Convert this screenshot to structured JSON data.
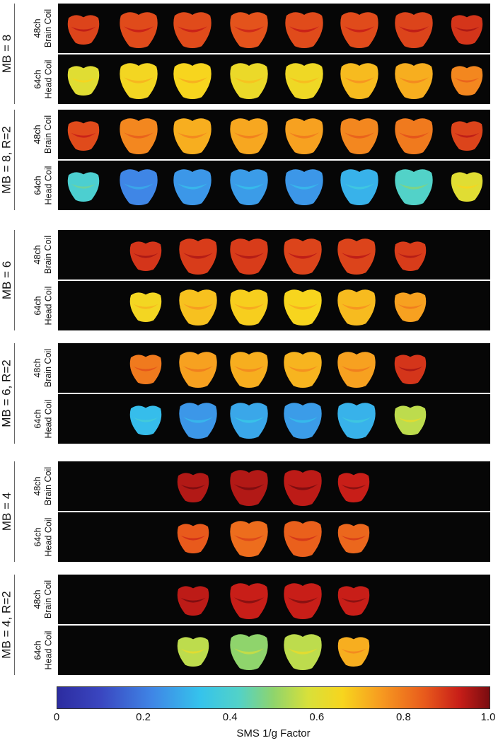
{
  "groups": [
    {
      "label": "MB = 8",
      "rows": [
        {
          "coil_count": "48ch",
          "coil_name": "Brain Coil",
          "g_values": [
            0.88,
            0.87,
            0.87,
            0.86,
            0.87,
            0.87,
            0.88,
            0.9
          ]
        },
        {
          "coil_count": "64ch",
          "coil_name": "Head Coil",
          "g_values": [
            0.6,
            0.65,
            0.66,
            0.63,
            0.64,
            0.7,
            0.72,
            0.78
          ]
        }
      ]
    },
    {
      "label": "MB = 8, R=2",
      "rows": [
        {
          "coil_count": "48ch",
          "coil_name": "Brain Coil",
          "g_values": [
            0.87,
            0.78,
            0.72,
            0.73,
            0.74,
            0.78,
            0.8,
            0.88
          ]
        },
        {
          "coil_count": "64ch",
          "coil_name": "Head Coil",
          "g_values": [
            0.4,
            0.22,
            0.25,
            0.26,
            0.25,
            0.3,
            0.42,
            0.6
          ]
        }
      ]
    },
    {
      "label": "MB = 6",
      "rows": [
        {
          "coil_count": "48ch",
          "coil_name": "Brain Coil",
          "g_values": [
            0.9,
            0.89,
            0.89,
            0.88,
            0.88,
            0.89
          ]
        },
        {
          "coil_count": "64ch",
          "coil_name": "Head Coil",
          "g_values": [
            0.65,
            0.69,
            0.67,
            0.66,
            0.7,
            0.74
          ]
        }
      ]
    },
    {
      "label": "MB = 6, R=2",
      "rows": [
        {
          "coil_count": "48ch",
          "coil_name": "Brain Coil",
          "g_values": [
            0.8,
            0.74,
            0.72,
            0.71,
            0.74,
            0.9
          ]
        },
        {
          "coil_count": "64ch",
          "coil_name": "Head Coil",
          "g_values": [
            0.32,
            0.25,
            0.28,
            0.26,
            0.3,
            0.55
          ]
        }
      ]
    },
    {
      "label": "MB = 4",
      "rows": [
        {
          "coil_count": "48ch",
          "coil_name": "Brain Coil",
          "g_values": [
            0.95,
            0.95,
            0.94,
            0.93
          ]
        },
        {
          "coil_count": "64ch",
          "coil_name": "Head Coil",
          "g_values": [
            0.85,
            0.82,
            0.84,
            0.83
          ]
        }
      ]
    },
    {
      "label": "MB = 4, R=2",
      "rows": [
        {
          "coil_count": "48ch",
          "coil_name": "Brain Coil",
          "g_values": [
            0.94,
            0.93,
            0.93,
            0.93
          ]
        },
        {
          "coil_count": "64ch",
          "coil_name": "Head Coil",
          "g_values": [
            0.55,
            0.5,
            0.55,
            0.72
          ]
        }
      ]
    }
  ],
  "colorbar": {
    "title": "SMS 1/g Factor",
    "range": [
      0,
      1.0
    ],
    "ticks": [
      "0",
      "0.2",
      "0.4",
      "0.6",
      "0.8",
      "1.0"
    ],
    "colormap": "jet"
  }
}
